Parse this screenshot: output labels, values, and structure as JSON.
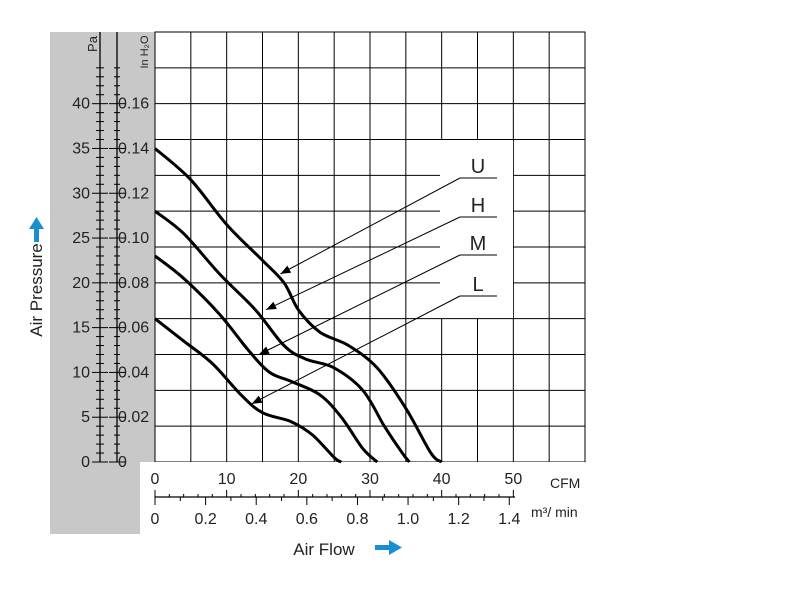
{
  "chart_data": {
    "type": "line",
    "x_units": {
      "primary": "CFM",
      "secondary": "m³/ min"
    },
    "y_units": {
      "primary": "Pa",
      "secondary": "In H₂O"
    },
    "xlabel": "Air Flow",
    "ylabel": "Air Pressure",
    "xlim": [
      0,
      60
    ],
    "ylim": [
      0,
      48
    ],
    "x_ticks": [
      "0",
      "10",
      "20",
      "30",
      "40",
      "50"
    ],
    "x_ticks_secondary": [
      "0",
      "0.2",
      "0.4",
      "0.6",
      "0.8",
      "1.0",
      "1.2",
      "1.4"
    ],
    "y_ticks": [
      "0",
      "5",
      "10",
      "15",
      "20",
      "25",
      "30",
      "35",
      "40"
    ],
    "y_ticks_secondary": [
      "0",
      "0.02",
      "0.04",
      "0.06",
      "0.08",
      "0.10",
      "0.12",
      "0.14",
      "0.16"
    ],
    "grid": true,
    "legend_position": "top-right",
    "series": [
      {
        "name": "U",
        "points": [
          [
            0,
            35
          ],
          [
            5,
            31.5
          ],
          [
            10,
            26.5
          ],
          [
            15,
            22.5
          ],
          [
            18,
            20
          ],
          [
            20,
            17
          ],
          [
            23,
            14.5
          ],
          [
            27,
            13
          ],
          [
            31,
            10.5
          ],
          [
            35,
            6
          ],
          [
            38.5,
            1
          ],
          [
            40,
            0
          ]
        ]
      },
      {
        "name": "H",
        "points": [
          [
            0,
            28
          ],
          [
            4,
            25.5
          ],
          [
            9,
            21
          ],
          [
            14,
            17
          ],
          [
            18,
            13
          ],
          [
            21,
            11.5
          ],
          [
            25,
            10.5
          ],
          [
            29,
            8
          ],
          [
            32,
            4
          ],
          [
            34.5,
            1
          ],
          [
            35.5,
            0
          ]
        ]
      },
      {
        "name": "M",
        "points": [
          [
            0,
            23
          ],
          [
            4,
            20.5
          ],
          [
            9,
            16.5
          ],
          [
            13,
            12.5
          ],
          [
            16,
            10
          ],
          [
            19,
            9
          ],
          [
            23,
            7.5
          ],
          [
            26,
            5
          ],
          [
            29,
            1.5
          ],
          [
            31,
            0
          ]
        ]
      },
      {
        "name": "L",
        "points": [
          [
            0,
            16
          ],
          [
            4,
            13.5
          ],
          [
            8,
            11
          ],
          [
            12,
            7.5
          ],
          [
            15,
            5.5
          ],
          [
            19,
            4.5
          ],
          [
            22,
            3
          ],
          [
            25,
            0.5
          ],
          [
            26,
            0
          ]
        ]
      }
    ],
    "legend_pointers": [
      {
        "name": "U",
        "target": [
          17.5,
          21
        ]
      },
      {
        "name": "H",
        "target": [
          15.5,
          17
        ]
      },
      {
        "name": "M",
        "target": [
          14.5,
          12
        ]
      },
      {
        "name": "L",
        "target": [
          13.5,
          6.5
        ]
      }
    ],
    "colors": {
      "panel": "#c8c8c8",
      "grid": "#000000",
      "curve": "#000000",
      "arrow": "#1a8fd0"
    }
  }
}
